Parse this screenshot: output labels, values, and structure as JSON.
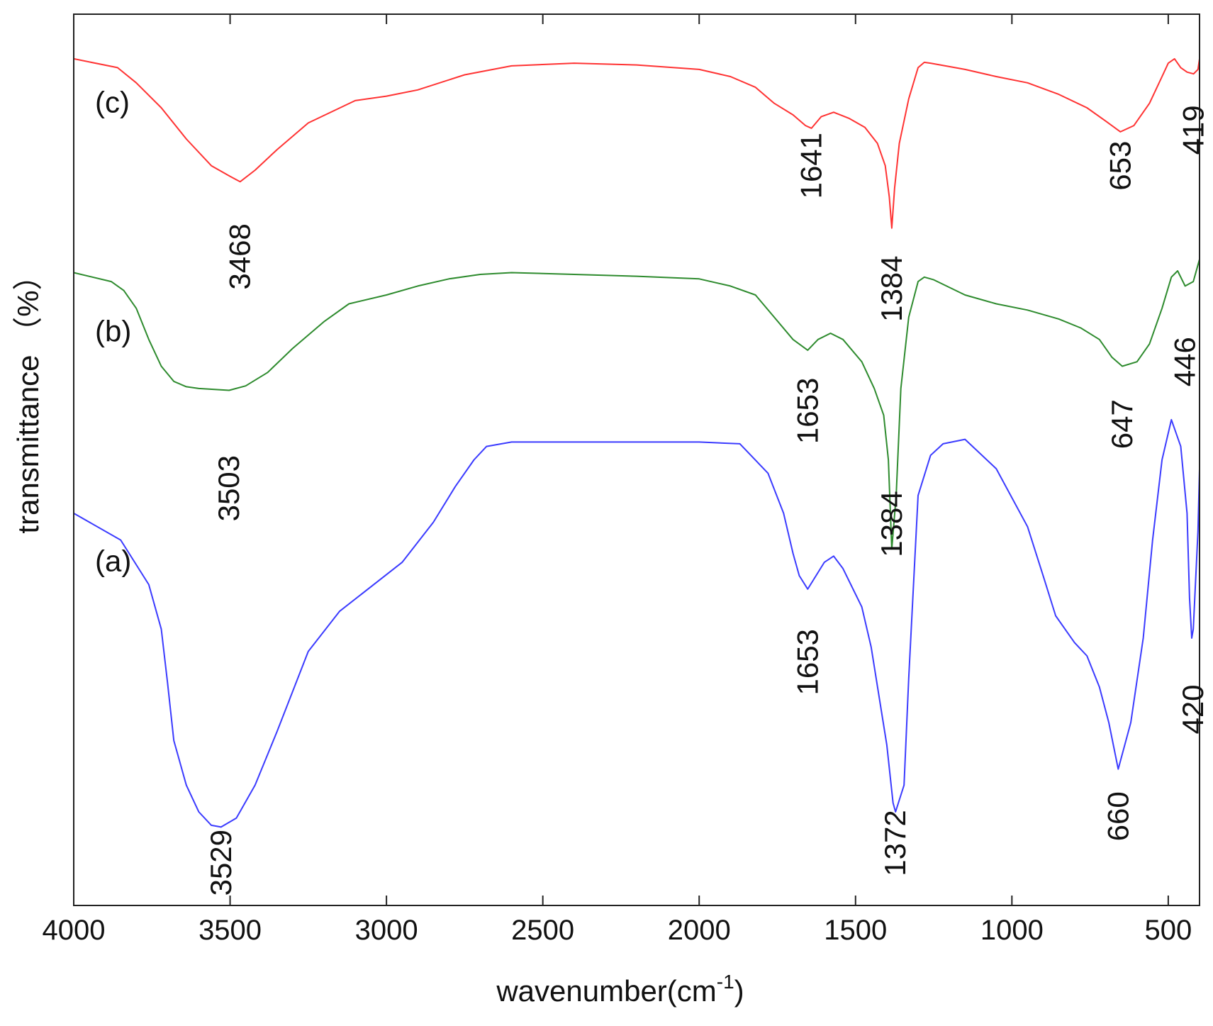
{
  "chart_data": {
    "type": "line",
    "title": "",
    "xlabel": "wavenumber(cm",
    "xlabel_sup": "-1",
    "xlabel_close": ")",
    "ylabel": "transmittance （%）",
    "xlim": [
      4000,
      400
    ],
    "ylim": [
      0,
      100
    ],
    "x_reversed": true,
    "grid": false,
    "y_ticks_shown": false,
    "x_ticks": [
      4000,
      3500,
      3000,
      2500,
      2000,
      1500,
      1000,
      500
    ],
    "x_tick_labels": [
      "4000",
      "3500",
      "3000",
      "2500",
      "2000",
      "1500",
      "1000",
      "500"
    ],
    "series": [
      {
        "label": "(a)",
        "color": "#3b3bff",
        "x": [
          4000,
          3850,
          3760,
          3720,
          3700,
          3680,
          3640,
          3600,
          3560,
          3529,
          3480,
          3420,
          3350,
          3250,
          3150,
          2950,
          2850,
          2780,
          2720,
          2680,
          2600,
          2300,
          2000,
          1870,
          1780,
          1730,
          1700,
          1680,
          1653,
          1600,
          1570,
          1540,
          1480,
          1450,
          1400,
          1380,
          1372,
          1345,
          1330,
          1300,
          1260,
          1220,
          1150,
          1050,
          950,
          900,
          860,
          800,
          760,
          720,
          690,
          660,
          620,
          580,
          550,
          520,
          490,
          460,
          440,
          432,
          425,
          420,
          405,
          400
        ],
        "y": [
          44.0,
          41.0,
          36.0,
          31.0,
          25.0,
          18.5,
          13.5,
          10.5,
          9.0,
          8.8,
          9.8,
          13.5,
          19.5,
          28.5,
          33.0,
          38.5,
          43.0,
          47.0,
          50.0,
          51.5,
          52.0,
          52.0,
          52.0,
          51.8,
          48.5,
          44.0,
          39.5,
          37.0,
          35.5,
          38.5,
          39.2,
          37.8,
          33.5,
          29.0,
          18.0,
          11.5,
          10.5,
          13.5,
          25.5,
          46.0,
          50.5,
          51.8,
          52.3,
          49.0,
          42.5,
          37.0,
          32.5,
          29.5,
          28.0,
          24.5,
          20.5,
          15.3,
          20.5,
          30.0,
          41.0,
          50.0,
          54.5,
          51.5,
          44.0,
          34.5,
          30.0,
          31.0,
          42.0,
          49.0
        ]
      },
      {
        "label": "(b)",
        "color": "#2e8b2e",
        "x": [
          4000,
          3880,
          3840,
          3800,
          3760,
          3720,
          3680,
          3640,
          3600,
          3503,
          3450,
          3380,
          3300,
          3200,
          3120,
          3000,
          2900,
          2800,
          2700,
          2600,
          2400,
          2200,
          2000,
          1900,
          1820,
          1760,
          1700,
          1653,
          1620,
          1580,
          1540,
          1480,
          1440,
          1410,
          1395,
          1384,
          1370,
          1355,
          1330,
          1300,
          1280,
          1250,
          1150,
          1050,
          950,
          850,
          780,
          720,
          680,
          647,
          600,
          560,
          520,
          490,
          470,
          446,
          420,
          400
        ],
        "y": [
          71.0,
          70.0,
          69.0,
          67.0,
          63.5,
          60.5,
          58.8,
          58.2,
          58.0,
          57.8,
          58.3,
          59.8,
          62.5,
          65.5,
          67.5,
          68.5,
          69.5,
          70.3,
          70.8,
          71.0,
          70.8,
          70.6,
          70.3,
          69.5,
          68.5,
          66.0,
          63.5,
          62.3,
          63.5,
          64.2,
          63.5,
          61.0,
          58.0,
          55.0,
          50.0,
          40.0,
          46.0,
          58.0,
          66.0,
          70.0,
          70.5,
          70.2,
          68.5,
          67.5,
          66.8,
          65.8,
          64.8,
          63.5,
          61.5,
          60.5,
          61.0,
          63.0,
          67.0,
          70.5,
          71.2,
          69.5,
          70.0,
          72.5
        ]
      },
      {
        "label": "(c)",
        "color": "#ff3333",
        "x": [
          4000,
          3860,
          3800,
          3720,
          3640,
          3560,
          3500,
          3468,
          3420,
          3350,
          3250,
          3100,
          3000,
          2900,
          2750,
          2600,
          2400,
          2200,
          2000,
          1900,
          1820,
          1760,
          1700,
          1660,
          1641,
          1610,
          1570,
          1520,
          1470,
          1430,
          1405,
          1392,
          1384,
          1375,
          1360,
          1330,
          1300,
          1280,
          1260,
          1150,
          1050,
          950,
          850,
          760,
          700,
          653,
          610,
          560,
          520,
          500,
          480,
          460,
          440,
          419,
          405,
          400
        ],
        "y": [
          95.0,
          94.0,
          92.3,
          89.5,
          86.0,
          83.0,
          81.8,
          81.2,
          82.5,
          84.8,
          87.8,
          90.3,
          90.8,
          91.5,
          93.2,
          94.2,
          94.5,
          94.3,
          93.8,
          93.0,
          91.8,
          90.0,
          88.7,
          87.5,
          87.2,
          88.5,
          89.0,
          88.3,
          87.3,
          85.5,
          83.0,
          79.5,
          76.0,
          80.5,
          85.5,
          90.5,
          94.0,
          94.6,
          94.5,
          93.8,
          93.0,
          92.3,
          91.0,
          89.5,
          88.0,
          86.8,
          87.5,
          90.0,
          93.0,
          94.5,
          95.0,
          94.0,
          93.5,
          93.3,
          93.8,
          95.0
        ]
      }
    ],
    "annotations": [
      {
        "text": "3468",
        "x": 3468,
        "y": 72.8
      },
      {
        "text": "1641",
        "x": 1641,
        "y": 83.0
      },
      {
        "text": "1384",
        "x": 1384,
        "y": 69.2
      },
      {
        "text": "653",
        "x": 653,
        "y": 83.0
      },
      {
        "text": "419",
        "x": 419,
        "y": 87.0
      },
      {
        "text": "3503",
        "x": 3503,
        "y": 46.8
      },
      {
        "text": "1653",
        "x": 1653,
        "y": 55.5
      },
      {
        "text": "1384",
        "x": 1384,
        "y": 42.8
      },
      {
        "text": "647",
        "x": 647,
        "y": 54.0
      },
      {
        "text": "446",
        "x": 446,
        "y": 61.0
      },
      {
        "text": "3529",
        "x": 3529,
        "y": 4.8
      },
      {
        "text": "1653",
        "x": 1653,
        "y": 27.3
      },
      {
        "text": "1372",
        "x": 1372,
        "y": 7.0
      },
      {
        "text": "660",
        "x": 660,
        "y": 10.0
      },
      {
        "text": "420",
        "x": 420,
        "y": 22.0
      }
    ],
    "series_labels": [
      {
        "text": "(c)",
        "x": 3950,
        "y": 89.0
      },
      {
        "text": "(b)",
        "x": 3950,
        "y": 63.3
      },
      {
        "text": "(a)",
        "x": 3950,
        "y": 37.5
      }
    ]
  }
}
